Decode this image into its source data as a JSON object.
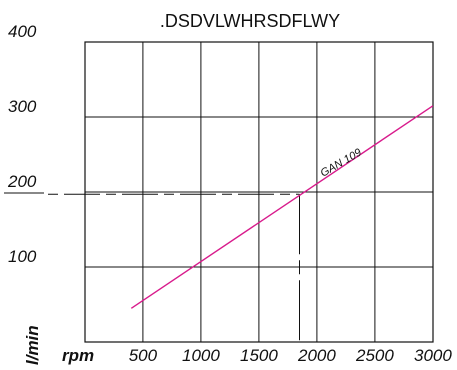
{
  "chart_data": {
    "type": "line",
    "title": ".DSDVLWHRSDFLWY",
    "xlabel": "rpm",
    "ylabel": "l/min",
    "xlim": [
      0,
      3000
    ],
    "ylim": [
      0,
      400
    ],
    "x_ticks": [
      500,
      1000,
      1500,
      2000,
      2500,
      3000
    ],
    "y_ticks": [
      100,
      200,
      300,
      400
    ],
    "x_tick_labels": [
      "500",
      "1000",
      "1500",
      "2000",
      "2500",
      "3000"
    ],
    "y_tick_labels": [
      "100",
      "200",
      "300",
      "400"
    ],
    "grid": true,
    "series": [
      {
        "name": "GAN 109",
        "color": "#d81b8c",
        "x": [
          400,
          3000
        ],
        "y": [
          45,
          315
        ]
      }
    ],
    "reference_point": {
      "x": 1850,
      "y": 197
    }
  }
}
